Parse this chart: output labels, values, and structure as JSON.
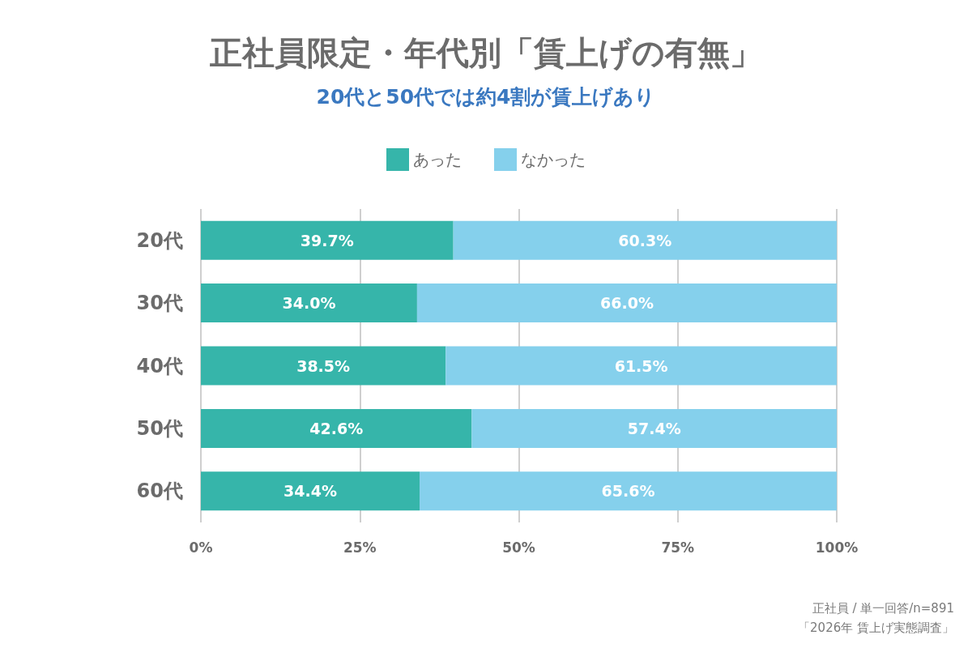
{
  "chart_data": {
    "type": "bar",
    "orientation": "horizontal",
    "stacked": true,
    "title": "正社員限定・年代別「賃上げの有無」",
    "subtitle": "20代と50代では約4割が賃上げあり",
    "categories": [
      "20代",
      "30代",
      "40代",
      "50代",
      "60代"
    ],
    "series": [
      {
        "name": "あった",
        "color": "#36b5aa",
        "values": [
          39.7,
          34.0,
          38.5,
          42.6,
          34.4
        ],
        "value_labels": [
          "39.7%",
          "34.0%",
          "38.5%",
          "42.6%",
          "34.4%"
        ]
      },
      {
        "name": "なかった",
        "color": "#85d0ec",
        "values": [
          60.3,
          66.0,
          61.5,
          57.4,
          65.6
        ],
        "value_labels": [
          "60.3%",
          "66.0%",
          "61.5%",
          "57.4%",
          "65.6%"
        ]
      }
    ],
    "xlim": [
      0,
      100
    ],
    "xticks": [
      {
        "value": 0,
        "label": "0%"
      },
      {
        "value": 25,
        "label": "25%"
      },
      {
        "value": 50,
        "label": "50%"
      },
      {
        "value": 75,
        "label": "75%"
      },
      {
        "value": 100,
        "label": "100%"
      }
    ],
    "grid": "x",
    "legend": "top",
    "annotations": [
      "正社員 / 単一回答/n=891",
      "「2026年 賃上げ実態調査」"
    ]
  }
}
